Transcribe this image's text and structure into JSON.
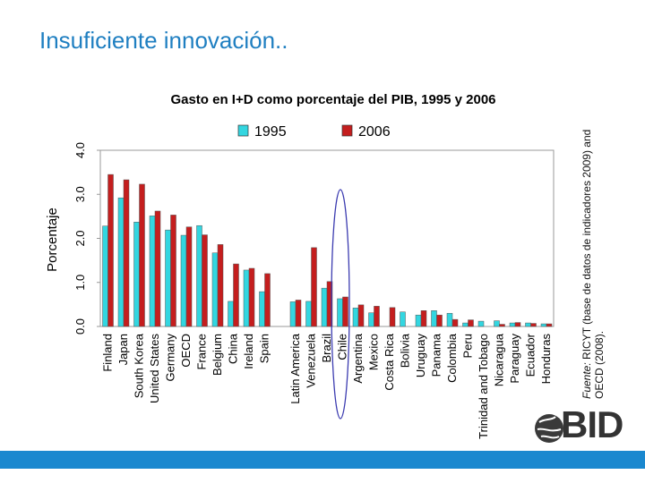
{
  "page": {
    "title": "Insuficiente innovación.."
  },
  "source": {
    "label": "Fuente:",
    "text_line1": "RICYT (base de datos de indicadores 2009) and",
    "text_line2": "OECD (2008)."
  },
  "logo": {
    "text": "BID"
  },
  "colors": {
    "series_1995": "#33d6e0",
    "series_2006": "#c41e1e",
    "title": "#1f7fc1",
    "highlight": "#3b3bb0",
    "bar": "#1a88cf"
  },
  "chart_data": {
    "type": "bar",
    "title": "Gasto en I+D como porcentaje del PIB, 1995 y 2006",
    "xlabel": "",
    "ylabel": "Porcentaje",
    "ylim": [
      0,
      4
    ],
    "yticks": [
      "0.0",
      "1.0",
      "2.0",
      "3.0",
      "4.0"
    ],
    "legend_position": "top",
    "grid": false,
    "highlighted_category": "Chile",
    "groups": [
      [
        "Finland",
        "Japan",
        "South Korea",
        "United States",
        "Germany",
        "OECD",
        "France",
        "Belgium",
        "China",
        "Ireland",
        "Spain"
      ],
      [
        "Latin America",
        "Venezuela",
        "Brazil",
        "Chile",
        "Argentina",
        "Mexico",
        "Costa Rica",
        "Bolivia",
        "Uruguay",
        "Panama",
        "Colombia",
        "Peru",
        "Trinidad and Tobago",
        "Nicaragua",
        "Paraguay",
        "Ecuador",
        "Honduras"
      ]
    ],
    "categories": [
      "Finland",
      "Japan",
      "South Korea",
      "United States",
      "Germany",
      "OECD",
      "France",
      "Belgium",
      "China",
      "Ireland",
      "Spain",
      "Latin America",
      "Venezuela",
      "Brazil",
      "Chile",
      "Argentina",
      "Mexico",
      "Costa Rica",
      "Bolivia",
      "Uruguay",
      "Panama",
      "Colombia",
      "Peru",
      "Trinidad and Tobago",
      "Nicaragua",
      "Paraguay",
      "Ecuador",
      "Honduras"
    ],
    "series": [
      {
        "name": "1995",
        "values": [
          2.28,
          2.92,
          2.37,
          2.51,
          2.19,
          2.07,
          2.29,
          1.67,
          0.57,
          1.28,
          0.79,
          0.56,
          0.57,
          0.87,
          0.63,
          0.42,
          0.31,
          null,
          0.33,
          0.26,
          0.36,
          0.3,
          0.08,
          0.12,
          0.13,
          0.08,
          0.08,
          0.06
        ]
      },
      {
        "name": "2006",
        "values": [
          3.45,
          3.33,
          3.23,
          2.62,
          2.53,
          2.26,
          2.08,
          1.86,
          1.42,
          1.32,
          1.2,
          0.6,
          1.79,
          1.02,
          0.67,
          0.49,
          0.46,
          0.43,
          null,
          0.36,
          0.26,
          0.16,
          0.15,
          null,
          0.05,
          0.09,
          0.07,
          0.06
        ]
      }
    ]
  }
}
